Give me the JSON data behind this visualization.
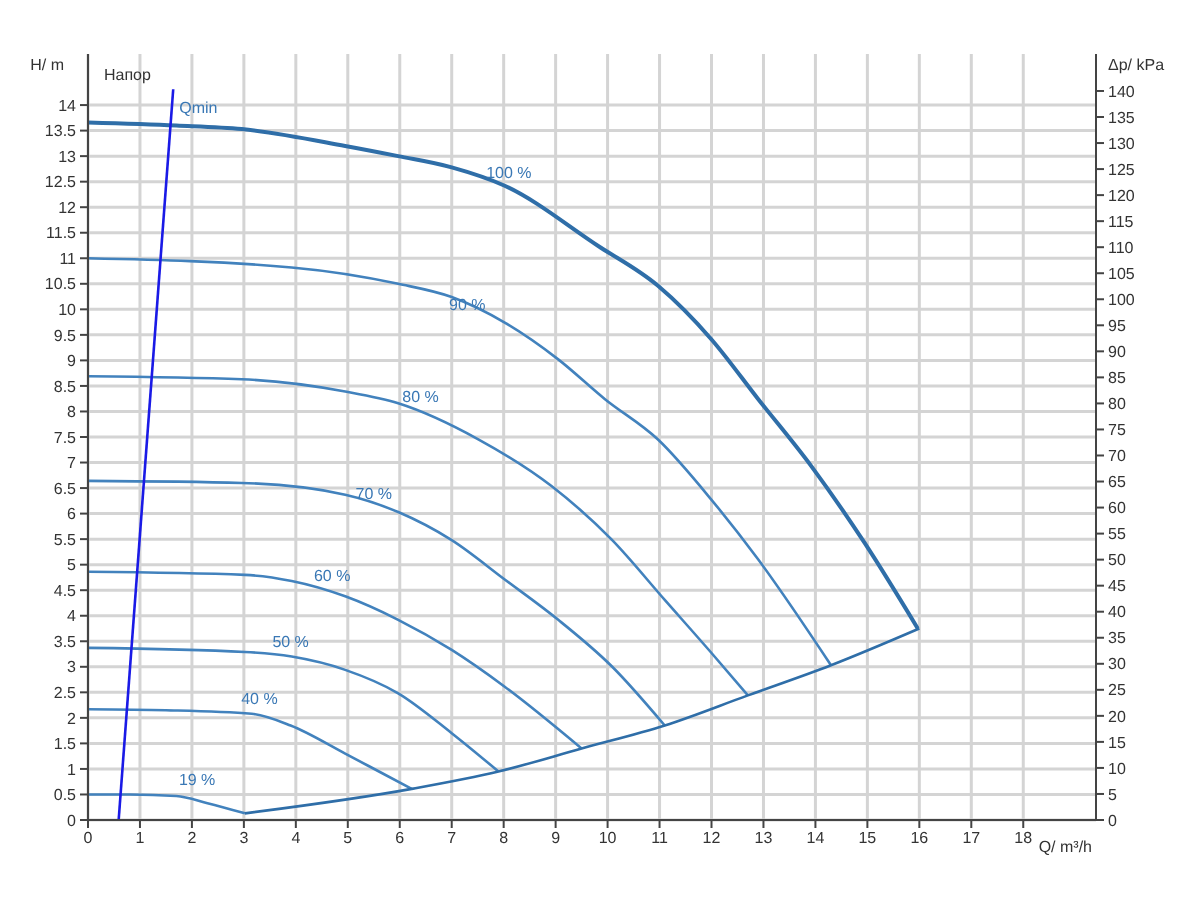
{
  "chart_data": {
    "type": "line",
    "xlabel": "Q/ m³/h",
    "ylabel": "H/ m",
    "y2label": "Δp/ kPa",
    "xlim": [
      0,
      19.4
    ],
    "xticks": [
      0,
      1,
      2,
      3,
      4,
      5,
      6,
      7,
      8,
      9,
      10,
      11,
      12,
      13,
      14,
      15,
      16,
      17,
      18
    ],
    "ylim": [
      0,
      15
    ],
    "yticks": [
      0,
      0.5,
      1,
      1.5,
      2,
      2.5,
      3,
      3.5,
      4,
      4.5,
      5,
      5.5,
      6,
      6.5,
      7,
      7.5,
      8,
      8.5,
      9,
      9.5,
      10,
      10.5,
      11,
      11.5,
      12,
      12.5,
      13,
      13.5,
      14
    ],
    "y2lim": [
      0,
      147.1
    ],
    "y2ticks": [
      0,
      5,
      10,
      15,
      20,
      25,
      30,
      35,
      40,
      45,
      50,
      55,
      60,
      65,
      70,
      75,
      80,
      85,
      90,
      95,
      100,
      105,
      110,
      115,
      120,
      125,
      130,
      135,
      140
    ],
    "grid": true,
    "marker": "none",
    "line_style": "solid",
    "series": [
      {
        "color": "#2f6ea8",
        "x": [
          0,
          1.7,
          2.96,
          4.95,
          5.97,
          7.0,
          8.02,
          9.82,
          10.97,
          12.0,
          12.9,
          13.92,
          14.95,
          15.97
        ],
        "values": [
          13.66,
          13.6,
          13.53,
          13.2,
          13.0,
          12.78,
          12.42,
          11.24,
          10.46,
          9.41,
          8.24,
          6.93,
          5.42,
          3.75
        ]
      },
      {
        "color": "#4282bd",
        "x": [
          0,
          3.92,
          5.97,
          7.0,
          8.02,
          9.05,
          9.95,
          10.97,
          12.0,
          12.9,
          14.3
        ],
        "values": [
          11.0,
          10.82,
          10.5,
          10.24,
          9.74,
          9.02,
          8.24,
          7.45,
          6.27,
          5.1,
          3.03
        ]
      },
      {
        "color": "#4282bd",
        "x": [
          0,
          2.96,
          4.95,
          5.97,
          7.52,
          8.92,
          10.08,
          11.1,
          12.0,
          12.7
        ],
        "values": [
          8.69,
          8.63,
          8.39,
          8.16,
          7.45,
          6.54,
          5.49,
          4.31,
          3.27,
          2.44
        ]
      },
      {
        "color": "#4282bd",
        "x": [
          0,
          2.96,
          4.95,
          5.97,
          7.0,
          8.02,
          9.05,
          10.08,
          11.1
        ],
        "values": [
          6.64,
          6.6,
          6.37,
          6.03,
          5.48,
          4.71,
          3.92,
          3.01,
          1.85
        ]
      },
      {
        "color": "#4282bd",
        "x": [
          0,
          3.02,
          3.92,
          4.95,
          5.97,
          7.0,
          8.02,
          9.5
        ],
        "values": [
          4.86,
          4.8,
          4.68,
          4.38,
          3.92,
          3.33,
          2.61,
          1.4
        ]
      },
      {
        "color": "#4282bd",
        "x": [
          0,
          3.02,
          3.92,
          4.95,
          5.97,
          7.0,
          7.9
        ],
        "values": [
          3.37,
          3.29,
          3.2,
          2.94,
          2.48,
          1.7,
          0.95
        ]
      },
      {
        "color": "#4282bd",
        "x": [
          0,
          1.5,
          3.15,
          3.9,
          4.95,
          5.6,
          6.23
        ],
        "values": [
          2.17,
          2.15,
          2.08,
          1.85,
          1.3,
          0.95,
          0.61
        ]
      },
      {
        "color": "#4282bd",
        "x": [
          0,
          0.8,
          1.7,
          2.3,
          3.02
        ],
        "values": [
          0.5,
          0.5,
          0.47,
          0.33,
          0.13
        ]
      },
      {
        "color": "#2f6ea8",
        "x": [
          3.02,
          6.23,
          7.9,
          9.5,
          11.1,
          12.7,
          14.3,
          16.0
        ],
        "values": [
          0.13,
          0.61,
          0.95,
          1.4,
          1.85,
          2.44,
          3.03,
          3.75
        ]
      },
      {
        "name": "Qmin",
        "color": "#1a1ae6",
        "x": [
          0.59,
          1.64
        ],
        "values": [
          0,
          14.31
        ]
      }
    ],
    "annotations": [
      "Напор",
      {
        "text": "100 %",
        "x": 8.1,
        "y": 12.5
      },
      {
        "text": "90 %",
        "x": 7.3,
        "y": 9.9
      },
      {
        "text": "80 %",
        "x": 6.4,
        "y": 8.1
      },
      {
        "text": "70 %",
        "x": 5.5,
        "y": 6.2
      },
      {
        "text": "60 %",
        "x": 4.7,
        "y": 4.6
      },
      {
        "text": "50 %",
        "x": 3.9,
        "y": 3.3
      },
      {
        "text": "40 %",
        "x": 3.3,
        "y": 2.2
      },
      {
        "text": "19 %",
        "x": 2.1,
        "y": 0.6
      }
    ]
  }
}
